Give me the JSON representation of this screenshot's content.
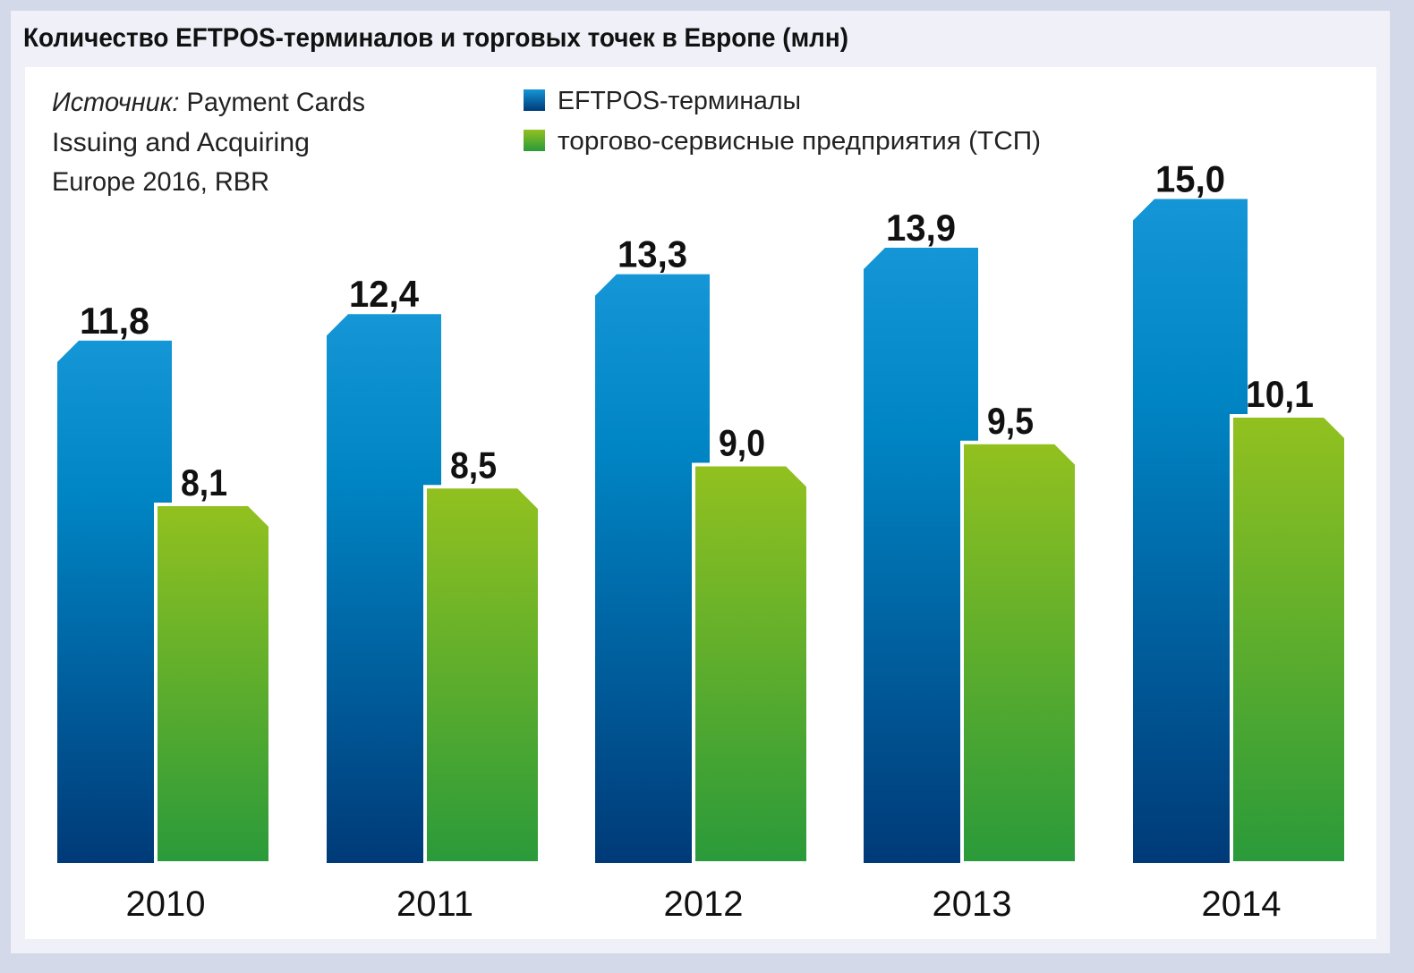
{
  "colors": {
    "eftpos_top": "#1596d6",
    "eftpos_bottom": "#003a78",
    "merchants_top": "#92c11f",
    "merchants_bottom": "#2a9a3a",
    "frame": "#d3d9e8",
    "panel": "#eff0f8",
    "plot_bg": "#ffffff"
  },
  "chart_data": {
    "type": "bar",
    "title": "Количество EFTPOS-терминалов и торговых точек в Европе (млн)",
    "source_label": "Источник:",
    "source_lines": [
      "Payment Cards",
      "Issuing and Acquiring",
      "Europe 2016, RBR"
    ],
    "categories": [
      "2010",
      "2011",
      "2012",
      "2013",
      "2014"
    ],
    "series": [
      {
        "name": "EFTPOS-терминалы",
        "values": [
          11.8,
          12.4,
          13.3,
          13.9,
          15.0
        ],
        "labels": [
          "11,8",
          "12,4",
          "13,3",
          "13,9",
          "15,0"
        ]
      },
      {
        "name": "торгово-сервисные предприятия (ТСП)",
        "values": [
          8.1,
          8.5,
          9.0,
          9.5,
          10.1
        ],
        "labels": [
          "8,1",
          "8,5",
          "9,0",
          "9,5",
          "10,1"
        ]
      }
    ],
    "legend_position": "top-center",
    "grid": false,
    "yaxis_visible": false,
    "ylim": [
      0,
      15
    ]
  }
}
